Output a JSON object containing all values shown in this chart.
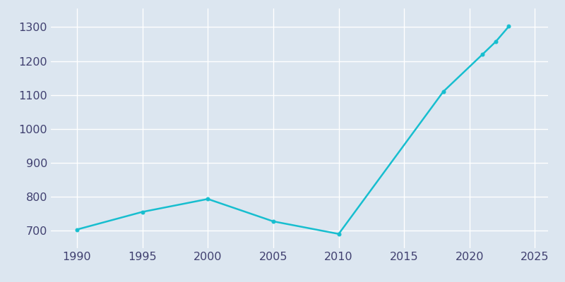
{
  "years": [
    1990,
    1995,
    2000,
    2005,
    2010,
    2018,
    2021,
    2022,
    2023
  ],
  "population": [
    703,
    755,
    793,
    727,
    690,
    1110,
    1220,
    1257,
    1302
  ],
  "line_color": "#17BECF",
  "marker_color": "#17BECF",
  "bg_color": "#DCE6F0",
  "grid_color": "#FFFFFF",
  "text_color": "#404070",
  "xlim": [
    1988,
    2026
  ],
  "ylim": [
    648,
    1355
  ],
  "xticks": [
    1990,
    1995,
    2000,
    2005,
    2010,
    2015,
    2020,
    2025
  ],
  "yticks": [
    700,
    800,
    900,
    1000,
    1100,
    1200,
    1300
  ],
  "figsize": [
    8.0,
    4.0
  ],
  "dpi": 100
}
